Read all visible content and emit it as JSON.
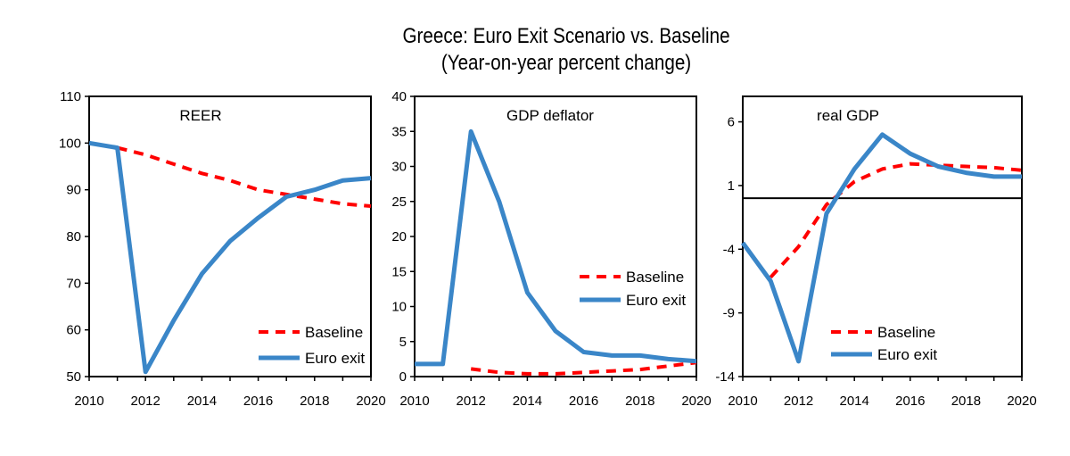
{
  "figure": {
    "title": "Greece: Euro Exit Scenario vs. Baseline",
    "subtitle": "(Year-on-year percent change)"
  },
  "colors": {
    "baseline": "#ff0000",
    "euro_exit": "#3a86c8",
    "axis": "#000000"
  },
  "chart_data": [
    {
      "type": "line",
      "title": "REER",
      "x": [
        2010,
        2011,
        2012,
        2013,
        2014,
        2015,
        2016,
        2017,
        2018,
        2019,
        2020
      ],
      "x_ticks": [
        "2010",
        "2012",
        "2014",
        "2016",
        "2018",
        "2020"
      ],
      "ylim": [
        50,
        110
      ],
      "y_ticks": [
        "110",
        "100",
        "90",
        "80",
        "70",
        "60",
        "50"
      ],
      "grid": false,
      "legend": "bottom-right",
      "series": [
        {
          "name": "Baseline",
          "style": "dashed",
          "values": [
            null,
            99,
            97.5,
            95.5,
            93.5,
            92,
            90,
            89,
            88,
            87,
            86.5
          ]
        },
        {
          "name": "Euro exit",
          "style": "solid",
          "values": [
            100,
            99,
            51,
            62,
            72,
            79,
            84,
            88.5,
            90,
            92,
            92.5
          ]
        }
      ]
    },
    {
      "type": "line",
      "title": "GDP deflator",
      "x": [
        2010,
        2011,
        2012,
        2013,
        2014,
        2015,
        2016,
        2017,
        2018,
        2019,
        2020
      ],
      "x_ticks": [
        "2010",
        "2012",
        "2014",
        "2016",
        "2018",
        "2020"
      ],
      "ylim": [
        0,
        40
      ],
      "y_ticks": [
        "40",
        "35",
        "30",
        "25",
        "20",
        "15",
        "10",
        "5",
        "0"
      ],
      "grid": false,
      "legend": "right",
      "series": [
        {
          "name": "Baseline",
          "style": "dashed",
          "values": [
            null,
            null,
            1.1,
            0.6,
            0.4,
            0.4,
            0.6,
            0.8,
            1.0,
            1.5,
            2.0
          ]
        },
        {
          "name": "Euro exit",
          "style": "solid",
          "values": [
            1.8,
            1.8,
            35,
            25,
            12,
            6.5,
            3.5,
            3.0,
            3.0,
            2.5,
            2.2
          ]
        }
      ]
    },
    {
      "type": "line",
      "title": "real GDP",
      "x": [
        2010,
        2011,
        2012,
        2013,
        2014,
        2015,
        2016,
        2017,
        2018,
        2019,
        2020
      ],
      "x_ticks": [
        "2010",
        "2012",
        "2014",
        "2016",
        "2018",
        "2020"
      ],
      "ylim": [
        -14,
        8
      ],
      "y_ticks": [
        "6",
        "1",
        "-4",
        "-9",
        "-14"
      ],
      "zero_line": true,
      "grid": false,
      "legend": "bottom-right",
      "series": [
        {
          "name": "Baseline",
          "style": "dashed",
          "values": [
            null,
            -6.2,
            -3.8,
            -0.5,
            1.3,
            2.3,
            2.7,
            2.6,
            2.5,
            2.4,
            2.2
          ]
        },
        {
          "name": "Euro exit",
          "style": "solid",
          "values": [
            -3.5,
            -6.5,
            -12.8,
            -1.2,
            2.3,
            5.0,
            3.5,
            2.5,
            2.0,
            1.7,
            1.7
          ]
        }
      ]
    }
  ]
}
